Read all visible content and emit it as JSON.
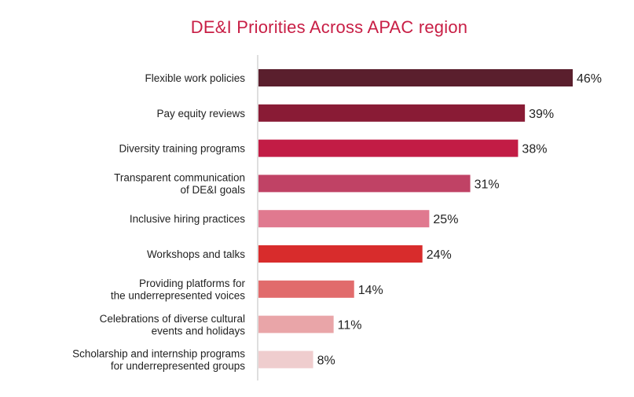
{
  "chart_data": {
    "type": "bar",
    "orientation": "horizontal",
    "title": "DE&I Priorities Across APAC region",
    "xlabel": "",
    "ylabel": "",
    "xlim": [
      0,
      46
    ],
    "grid": false,
    "value_suffix": "%",
    "categories": [
      [
        "Flexible work policies"
      ],
      [
        "Pay equity reviews"
      ],
      [
        "Diversity training programs"
      ],
      [
        "Transparent communication",
        "of DE&I goals"
      ],
      [
        "Inclusive hiring practices"
      ],
      [
        "Workshops and talks"
      ],
      [
        "Providing platforms for",
        "the underrepresented voices"
      ],
      [
        "Celebrations of diverse cultural",
        "events and holidays"
      ],
      [
        "Scholarship and internship programs",
        "for underrepresented groups"
      ]
    ],
    "values": [
      46,
      39,
      38,
      31,
      25,
      24,
      14,
      11,
      8
    ],
    "value_labels": [
      "46%",
      "39%",
      "38%",
      "31%",
      "25%",
      "24%",
      "14%",
      "11%",
      "8%"
    ],
    "colors": [
      "#5a1f2d",
      "#891b35",
      "#c21c45",
      "#c04265",
      "#e0798f",
      "#d82c2c",
      "#e16b6c",
      "#e9a5a8",
      "#efcdce"
    ]
  }
}
